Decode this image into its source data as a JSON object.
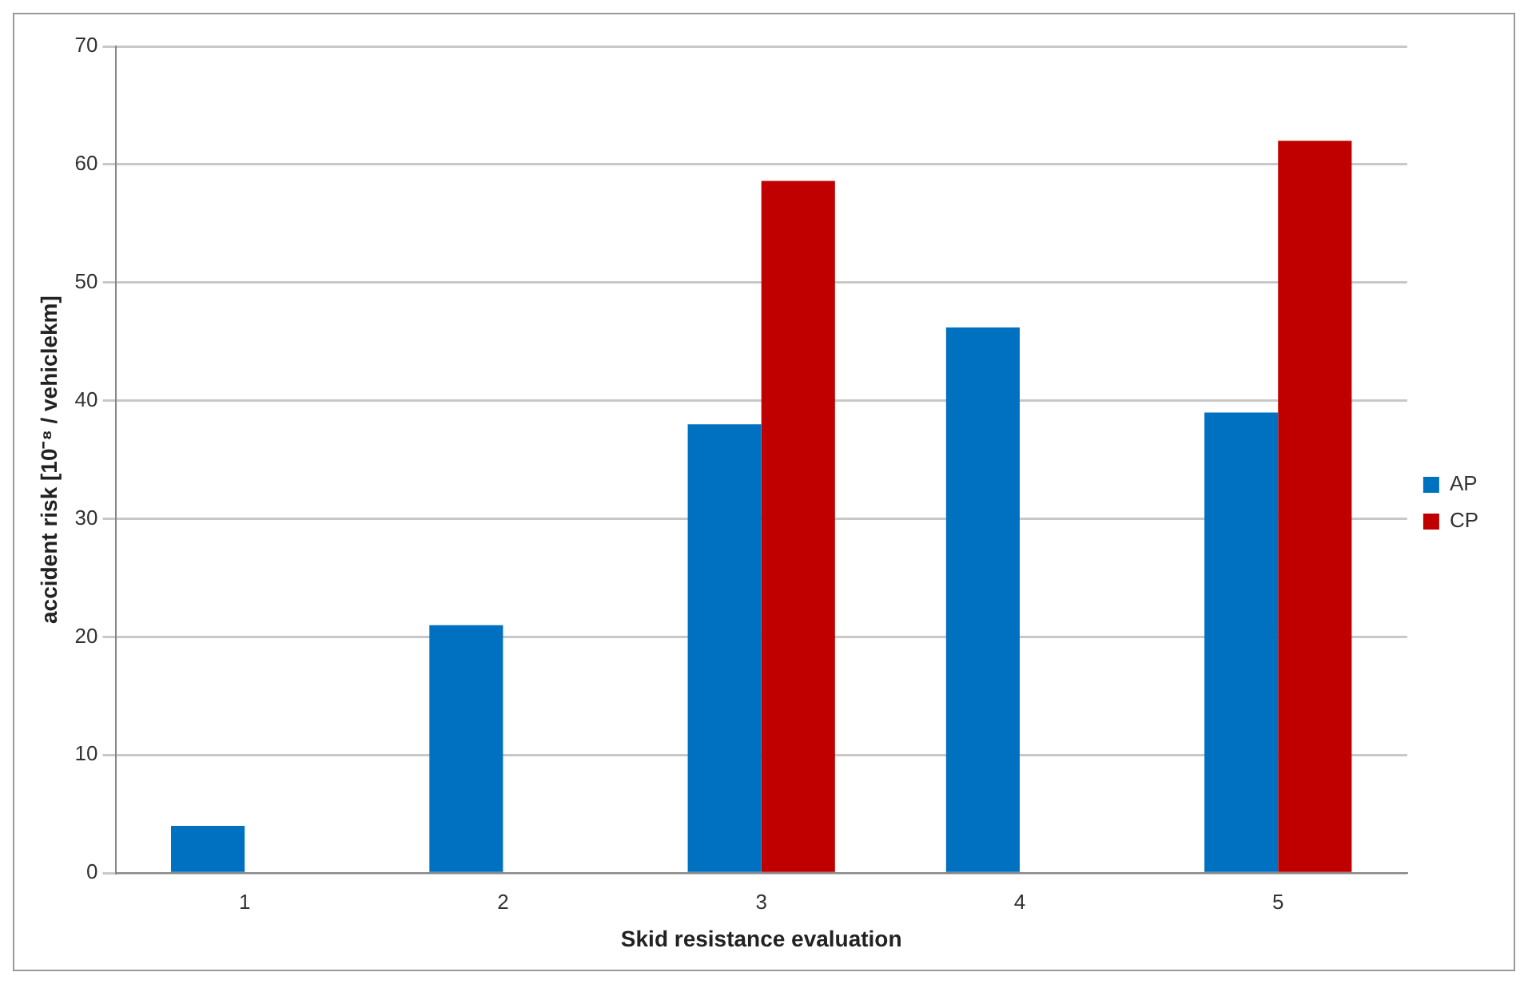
{
  "chart_data": {
    "type": "bar",
    "xlabel": "Skid resistance evaluation",
    "ylabel": "accident risk [10⁻⁸ / vehiclekm]",
    "categories": [
      "1",
      "2",
      "3",
      "4",
      "5"
    ],
    "series": [
      {
        "name": "AP",
        "color": "#0070c0",
        "values": [
          4,
          21,
          38,
          46.2,
          39
        ]
      },
      {
        "name": "CP",
        "color": "#c00000",
        "values": [
          null,
          null,
          58.6,
          null,
          62
        ]
      }
    ],
    "ylim": [
      0,
      70
    ],
    "yticks": [
      0,
      10,
      20,
      30,
      40,
      50,
      60,
      70
    ],
    "grid": "y",
    "legend": "right"
  }
}
